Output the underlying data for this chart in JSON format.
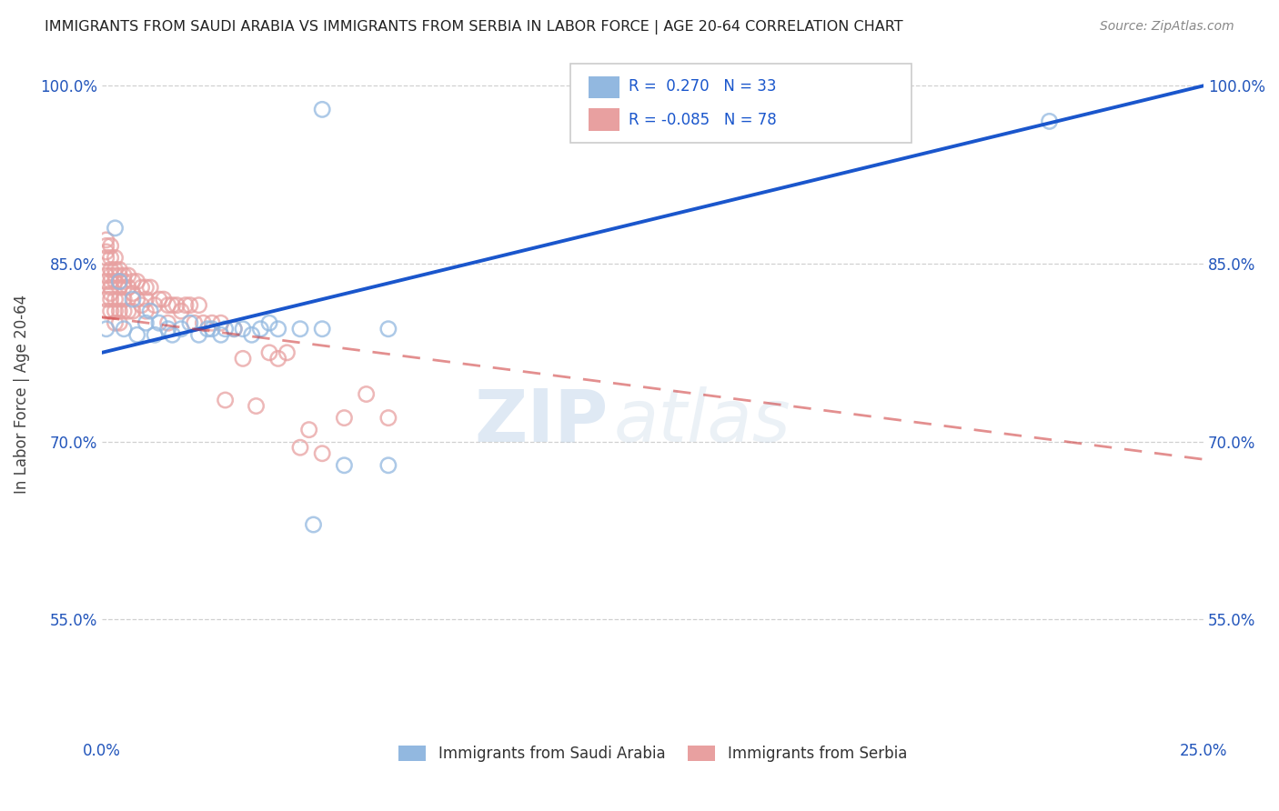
{
  "title": "IMMIGRANTS FROM SAUDI ARABIA VS IMMIGRANTS FROM SERBIA IN LABOR FORCE | AGE 20-64 CORRELATION CHART",
  "source": "Source: ZipAtlas.com",
  "ylabel": "In Labor Force | Age 20-64",
  "xlim": [
    0.0,
    0.25
  ],
  "ylim": [
    0.45,
    1.03
  ],
  "xticks": [
    0.0,
    0.05,
    0.1,
    0.15,
    0.2,
    0.25
  ],
  "xticklabels": [
    "0.0%",
    "",
    "",
    "",
    "",
    "25.0%"
  ],
  "yticks": [
    0.55,
    0.7,
    0.85,
    1.0
  ],
  "yticklabels": [
    "55.0%",
    "70.0%",
    "85.0%",
    "100.0%"
  ],
  "r_blue": 0.27,
  "n_blue": 33,
  "r_pink": -0.085,
  "n_pink": 78,
  "blue_color": "#92b8e0",
  "pink_color": "#e8a0a0",
  "blue_line_color": "#1a56cc",
  "pink_line_color": "#cc3333",
  "watermark_zip": "ZIP",
  "watermark_atlas": "atlas",
  "legend_label_blue": "Immigrants from Saudi Arabia",
  "legend_label_pink": "Immigrants from Serbia",
  "blue_scatter_x": [
    0.001,
    0.003,
    0.004,
    0.005,
    0.007,
    0.008,
    0.01,
    0.011,
    0.012,
    0.013,
    0.015,
    0.016,
    0.018,
    0.02,
    0.022,
    0.024,
    0.025,
    0.027,
    0.028,
    0.03,
    0.032,
    0.034,
    0.036,
    0.038,
    0.04,
    0.045,
    0.048,
    0.05,
    0.055,
    0.065,
    0.05,
    0.215,
    0.065
  ],
  "blue_scatter_y": [
    0.795,
    0.88,
    0.835,
    0.795,
    0.82,
    0.79,
    0.8,
    0.81,
    0.79,
    0.8,
    0.795,
    0.79,
    0.795,
    0.8,
    0.79,
    0.795,
    0.795,
    0.79,
    0.795,
    0.795,
    0.795,
    0.79,
    0.795,
    0.8,
    0.795,
    0.795,
    0.63,
    0.795,
    0.68,
    0.795,
    0.98,
    0.97,
    0.68
  ],
  "pink_scatter_x": [
    0.001,
    0.001,
    0.001,
    0.001,
    0.001,
    0.001,
    0.001,
    0.001,
    0.002,
    0.002,
    0.002,
    0.002,
    0.002,
    0.002,
    0.002,
    0.002,
    0.002,
    0.003,
    0.003,
    0.003,
    0.003,
    0.003,
    0.003,
    0.003,
    0.004,
    0.004,
    0.004,
    0.004,
    0.004,
    0.004,
    0.004,
    0.005,
    0.005,
    0.005,
    0.005,
    0.005,
    0.006,
    0.006,
    0.006,
    0.007,
    0.007,
    0.007,
    0.008,
    0.008,
    0.009,
    0.009,
    0.01,
    0.01,
    0.01,
    0.011,
    0.012,
    0.013,
    0.014,
    0.015,
    0.015,
    0.016,
    0.017,
    0.018,
    0.019,
    0.02,
    0.021,
    0.022,
    0.023,
    0.025,
    0.027,
    0.028,
    0.03,
    0.032,
    0.035,
    0.038,
    0.04,
    0.042,
    0.045,
    0.047,
    0.05,
    0.055,
    0.06,
    0.065
  ],
  "pink_scatter_y": [
    0.87,
    0.865,
    0.86,
    0.855,
    0.84,
    0.835,
    0.82,
    0.81,
    0.865,
    0.855,
    0.845,
    0.84,
    0.835,
    0.83,
    0.825,
    0.82,
    0.81,
    0.855,
    0.845,
    0.84,
    0.835,
    0.82,
    0.81,
    0.8,
    0.845,
    0.84,
    0.835,
    0.83,
    0.82,
    0.81,
    0.8,
    0.84,
    0.835,
    0.83,
    0.82,
    0.81,
    0.84,
    0.83,
    0.81,
    0.835,
    0.825,
    0.81,
    0.835,
    0.82,
    0.83,
    0.815,
    0.83,
    0.82,
    0.81,
    0.83,
    0.815,
    0.82,
    0.82,
    0.815,
    0.8,
    0.815,
    0.815,
    0.81,
    0.815,
    0.815,
    0.8,
    0.815,
    0.8,
    0.8,
    0.8,
    0.735,
    0.795,
    0.77,
    0.73,
    0.775,
    0.77,
    0.775,
    0.695,
    0.71,
    0.69,
    0.72,
    0.74,
    0.72
  ],
  "blue_trendline_x0": 0.0,
  "blue_trendline_y0": 0.775,
  "blue_trendline_x1": 0.25,
  "blue_trendline_y1": 1.0,
  "pink_trendline_x0": 0.0,
  "pink_trendline_y0": 0.805,
  "pink_trendline_x1": 0.25,
  "pink_trendline_y1": 0.685
}
